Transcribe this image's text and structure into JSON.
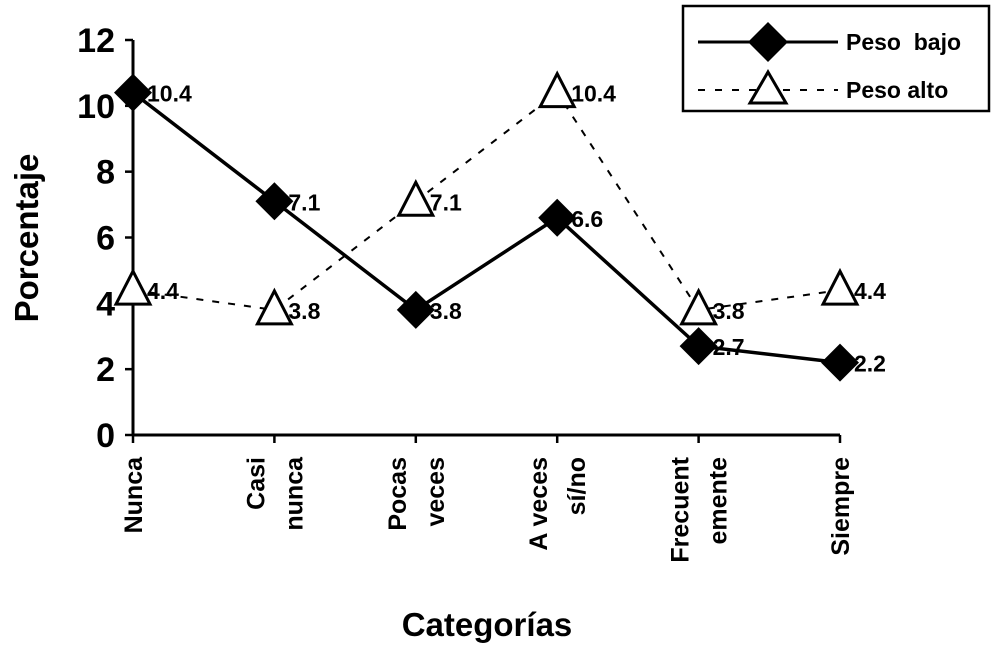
{
  "chart_data": {
    "type": "line",
    "categories": [
      [
        "Nunca"
      ],
      [
        "Casi",
        "nunca"
      ],
      [
        "Pocas",
        "veces"
      ],
      [
        "A veces",
        "sí/no"
      ],
      [
        "Frecuent",
        "emente"
      ],
      [
        "Siempre"
      ]
    ],
    "series": [
      {
        "name": "Peso  bajo",
        "values": [
          10.4,
          7.1,
          3.8,
          6.6,
          2.7,
          2.2
        ],
        "data_labels": [
          "10.4",
          "7.1",
          "3.8",
          "6.6",
          "2.7",
          "2.2"
        ],
        "line_style": "solid",
        "marker": "diamond",
        "color": "#000000"
      },
      {
        "name": "Peso alto",
        "values": [
          4.4,
          3.8,
          7.1,
          10.4,
          3.8,
          4.4
        ],
        "data_labels": [
          "4.4",
          "3.8",
          "7.1",
          "10.4",
          "3.8",
          "4.4"
        ],
        "line_style": "dashed",
        "marker": "triangle-open",
        "color": "#000000"
      }
    ],
    "xlabel": "Categorías",
    "ylabel": "Porcentaje",
    "ylim": [
      0,
      12
    ],
    "yticks": [
      "0",
      "2",
      "4",
      "6",
      "8",
      "10",
      "12"
    ],
    "grid": false,
    "legend": "top-right"
  }
}
